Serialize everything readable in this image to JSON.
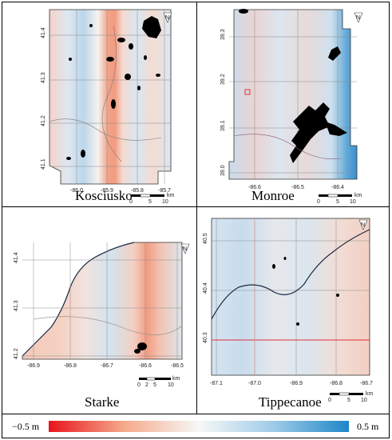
{
  "panels": [
    {
      "name": "Kosciusko",
      "lat_ticks": [
        "41.4",
        "41.3",
        "41.2",
        "41.1"
      ],
      "lon_ticks": [
        "-86.0",
        "-85.9",
        "-85.8",
        "-85.7"
      ],
      "scale": {
        "ticks": [
          "0",
          "5",
          "10"
        ],
        "unit": "km"
      }
    },
    {
      "name": "Monroe",
      "lat_ticks": [
        "39.3",
        "39.2",
        "39.1",
        "39.0"
      ],
      "lon_ticks": [
        "-86.6",
        "-86.5",
        "-86.4"
      ],
      "scale": {
        "ticks": [
          "0",
          "5",
          "10"
        ],
        "unit": "km"
      }
    },
    {
      "name": "Starke",
      "lat_ticks": [
        "41.4",
        "41.3",
        "41.2"
      ],
      "lon_ticks": [
        "-86.9",
        "-86.8",
        "-86.7",
        "-86.6",
        "-86.5"
      ],
      "scale": {
        "ticks": [
          "0",
          "2",
          "5",
          "10"
        ],
        "unit": "km"
      }
    },
    {
      "name": "Tippecanoe",
      "lat_ticks": [
        "40.5",
        "40.4",
        "40.3"
      ],
      "lon_ticks": [
        "-87.1",
        "-87.0",
        "-86.9",
        "-86.8",
        "-86.7"
      ],
      "scale": {
        "ticks": [
          "0",
          "5",
          "10"
        ],
        "unit": "km"
      }
    }
  ],
  "legend": {
    "min_label": "−0.5 m",
    "max_label": "0.5 m",
    "colors": [
      "#e8141c",
      "#f5a98a",
      "#f7f7f7",
      "#9ecbe8",
      "#1e86c8"
    ]
  },
  "north_arrow_label": "N"
}
